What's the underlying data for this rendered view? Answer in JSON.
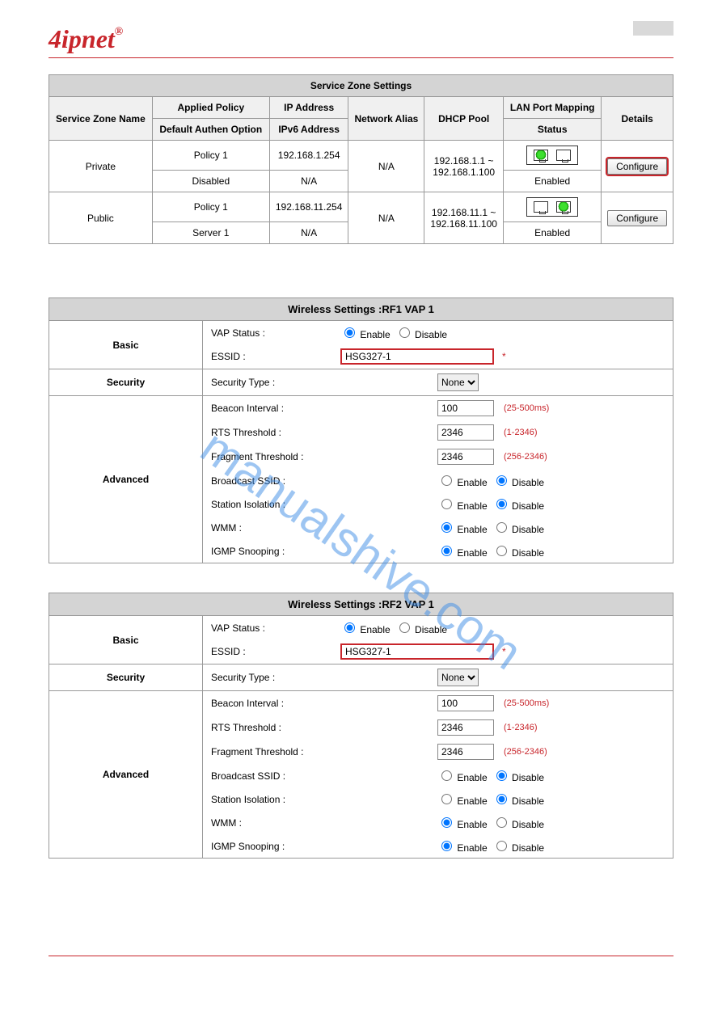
{
  "brand": "4ipnet",
  "watermark": "manualshive.com",
  "serviceZone": {
    "title": "Service Zone Settings",
    "headers": {
      "name": "Service Zone Name",
      "policy": "Applied Policy",
      "ip": "IP Address",
      "authen": "Default Authen Option",
      "ipv6": "IPv6 Address",
      "alias": "Network Alias",
      "dhcp": "DHCP Pool",
      "lanport": "LAN Port Mapping",
      "status": "Status",
      "details": "Details"
    },
    "rows": [
      {
        "name": "Private",
        "policy": "Policy 1",
        "ip": "192.168.1.254",
        "authen": "Disabled",
        "ipv6": "N/A",
        "alias": "N/A",
        "dhcp": "192.168.1.1 ~ 192.168.1.100",
        "port1_on": true,
        "port2_on": false,
        "status": "Enabled",
        "button": "Configure",
        "buttonHighlighted": true
      },
      {
        "name": "Public",
        "policy": "Policy 1",
        "ip": "192.168.11.254",
        "authen": "Server 1",
        "ipv6": "N/A",
        "alias": "N/A",
        "dhcp": "192.168.11.1 ~ 192.168.11.100",
        "port1_on": false,
        "port2_on": true,
        "status": "Enabled",
        "button": "Configure",
        "buttonHighlighted": false
      }
    ]
  },
  "wireless": [
    {
      "title": "Wireless Settings :RF1 VAP 1",
      "basic": {
        "vap_label": "VAP Status :",
        "enable": "Enable",
        "disable": "Disable",
        "vap_enabled": true,
        "essid_label": "ESSID :",
        "essid": "HSG327-1"
      },
      "security": {
        "type_label": "Security Type :",
        "value": "None"
      },
      "advanced": {
        "beacon_label": "Beacon Interval :",
        "beacon": "100",
        "beacon_hint": "(25-500ms)",
        "rts_label": "RTS Threshold :",
        "rts": "2346",
        "rts_hint": "(1-2346)",
        "frag_label": "Fragment Threshold :",
        "frag": "2346",
        "frag_hint": "(256-2346)",
        "bssid_label": "Broadcast SSID :",
        "bssid_enabled": false,
        "iso_label": "Station Isolation :",
        "iso_enabled": false,
        "wmm_label": "WMM :",
        "wmm_enabled": true,
        "igmp_label": "IGMP Snooping :",
        "igmp_enabled": true
      }
    },
    {
      "title": "Wireless Settings :RF2 VAP 1",
      "basic": {
        "vap_label": "VAP Status :",
        "enable": "Enable",
        "disable": "Disable",
        "vap_enabled": true,
        "essid_label": "ESSID :",
        "essid": "HSG327-1"
      },
      "security": {
        "type_label": "Security Type :",
        "value": "None"
      },
      "advanced": {
        "beacon_label": "Beacon Interval :",
        "beacon": "100",
        "beacon_hint": "(25-500ms)",
        "rts_label": "RTS Threshold :",
        "rts": "2346",
        "rts_hint": "(1-2346)",
        "frag_label": "Fragment Threshold :",
        "frag": "2346",
        "frag_hint": "(256-2346)",
        "bssid_label": "Broadcast SSID :",
        "bssid_enabled": false,
        "iso_label": "Station Isolation :",
        "iso_enabled": false,
        "wmm_label": "WMM :",
        "wmm_enabled": true,
        "igmp_label": "IGMP Snooping :",
        "igmp_enabled": true
      }
    }
  ],
  "labels": {
    "basic": "Basic",
    "security": "Security",
    "advanced": "Advanced",
    "enable": "Enable",
    "disable": "Disable"
  }
}
